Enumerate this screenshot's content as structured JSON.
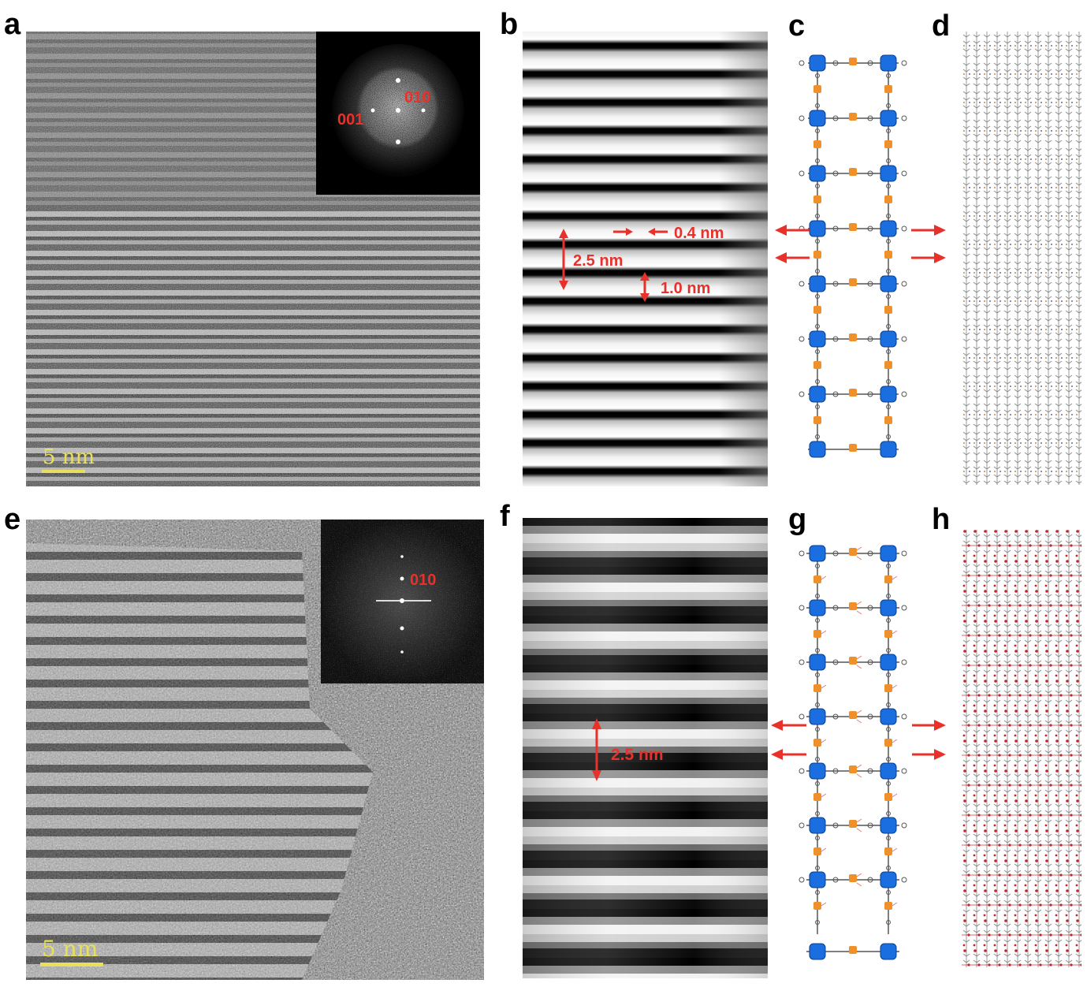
{
  "panels": {
    "a": {
      "label": "a",
      "scale_bar": "5 nm",
      "fft_spots": [
        "001",
        "010"
      ]
    },
    "b": {
      "label": "b",
      "measurements": [
        "0.4 nm",
        "2.5 nm",
        "1.0 nm"
      ]
    },
    "c": {
      "label": "c"
    },
    "d": {
      "label": "d"
    },
    "e": {
      "label": "e",
      "scale_bar": "5 nm",
      "fft_spots": [
        "010"
      ]
    },
    "f": {
      "label": "f",
      "measurements": [
        "2.5 nm"
      ]
    },
    "g": {
      "label": "g"
    },
    "h": {
      "label": "h"
    }
  },
  "colors": {
    "annotation": "#e8312a",
    "scale_bar": "#e8e05a",
    "porphyrin": "#1a6ee0",
    "linker": "#f0902a"
  }
}
